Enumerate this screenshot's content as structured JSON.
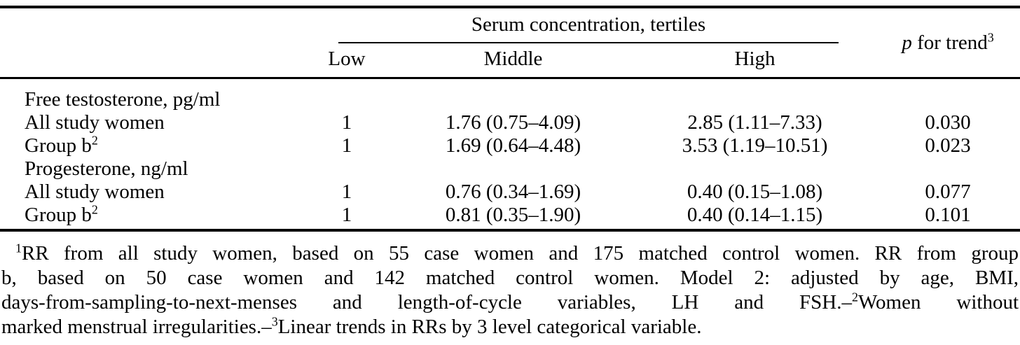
{
  "colors": {
    "text": "#000000",
    "background": "#ffffff",
    "rule": "#000000"
  },
  "table": {
    "header": {
      "spanner": "Serum concentration, tertiles",
      "columns": [
        "Low",
        "Middle",
        "High"
      ],
      "p_trend": [
        {
          "t": "p",
          "i": true
        },
        {
          "t": " for trend"
        },
        {
          "t": "3",
          "sup": true
        }
      ]
    },
    "rows": [
      {
        "type": "section",
        "label": [
          {
            "t": "Free testosterone, pg/ml"
          }
        ],
        "cells": [
          "",
          "",
          "",
          ""
        ]
      },
      {
        "type": "data",
        "label": [
          {
            "t": "All study women"
          }
        ],
        "cells": [
          "1",
          "1.76 (0.75–4.09)",
          "2.85 (1.11–7.33)",
          "0.030"
        ]
      },
      {
        "type": "data",
        "label": [
          {
            "t": "Group b"
          },
          {
            "t": "2",
            "sup": true
          }
        ],
        "cells": [
          "1",
          "1.69 (0.64–4.48)",
          "3.53 (1.19–10.51)",
          "0.023"
        ]
      },
      {
        "type": "section",
        "label": [
          {
            "t": "Progesterone, ng/ml"
          }
        ],
        "cells": [
          "",
          "",
          "",
          ""
        ]
      },
      {
        "type": "data",
        "label": [
          {
            "t": "All study women"
          }
        ],
        "cells": [
          "1",
          "0.76 (0.34–1.69)",
          "0.40 (0.15–1.08)",
          "0.077"
        ]
      },
      {
        "type": "data",
        "label": [
          {
            "t": "Group b"
          },
          {
            "t": "2",
            "sup": true
          }
        ],
        "cells": [
          "1",
          "0.81 (0.35–1.90)",
          "0.40 (0.14–1.15)",
          "0.101"
        ]
      }
    ]
  },
  "footnote": {
    "lines": [
      [
        {
          "t": "1",
          "sup": true
        },
        {
          "t": "RR from all study women, based on 55 case women and 175 matched control women. RR from group"
        }
      ],
      [
        {
          "t": "b, based on 50 case women and 142 matched control women. Model 2: adjusted by age, BMI,"
        }
      ],
      [
        {
          "t": "days-from-sampling-to-next-menses and length-of-cycle variables, LH and FSH.–"
        },
        {
          "t": "2",
          "sup": true
        },
        {
          "t": "Women without"
        }
      ],
      [
        {
          "t": "marked menstrual irregularities.–"
        },
        {
          "t": "3",
          "sup": true
        },
        {
          "t": "Linear trends in RRs by 3 level categorical variable."
        }
      ]
    ]
  }
}
